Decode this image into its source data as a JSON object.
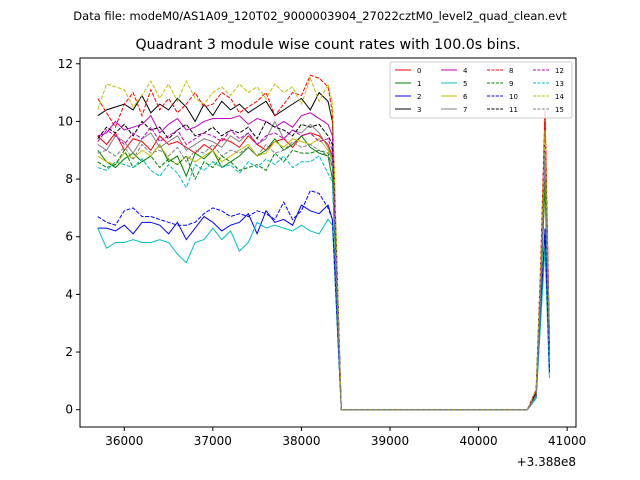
{
  "chart_data": {
    "type": "line",
    "suptitle": "Data file: modeM0/AS1A09_120T02_9000003904_27022cztM0_level2_quad_clean.evt",
    "title": "Quadrant 3 module wise count rates with 100.0s bins.",
    "xlabel": "",
    "ylabel": "",
    "x_offset_label": "+3.388e8",
    "xlim": [
      35500,
      41100
    ],
    "ylim": [
      -0.6,
      12.2
    ],
    "x_ticks": [
      36000,
      37000,
      38000,
      39000,
      40000,
      41000
    ],
    "x_tick_labels": [
      "36000",
      "37000",
      "38000",
      "39000",
      "40000",
      "41000"
    ],
    "y_ticks": [
      0,
      2,
      4,
      6,
      8,
      10,
      12
    ],
    "y_tick_labels": [
      "0",
      "2",
      "4",
      "6",
      "8",
      "10",
      "12"
    ],
    "grid": false,
    "legend_position": "upper-right",
    "x": [
      35700,
      35800,
      35900,
      36000,
      36100,
      36200,
      36300,
      36400,
      36500,
      36600,
      36700,
      36800,
      36900,
      37000,
      37100,
      37200,
      37300,
      37400,
      37500,
      37600,
      37700,
      37800,
      37900,
      38000,
      38100,
      38200,
      38300,
      38350,
      38450,
      38550,
      38650,
      38750,
      38850,
      38950,
      39050,
      39150,
      39250,
      39350,
      39450,
      39550,
      39650,
      39750,
      39850,
      39950,
      40050,
      40150,
      40250,
      40350,
      40450,
      40550,
      40650,
      40700,
      40750,
      40800
    ],
    "series": [
      {
        "name": "0",
        "color": "#ff0000",
        "dash": false,
        "values": [
          9.5,
          9.2,
          9.6,
          9.0,
          9.4,
          9.3,
          9.0,
          9.5,
          9.2,
          9.3,
          9.1,
          8.9,
          9.2,
          9.0,
          9.4,
          9.3,
          9.1,
          9.5,
          9.2,
          9.0,
          9.3,
          9.4,
          9.1,
          9.5,
          9.6,
          9.5,
          9.2,
          8.8,
          0.0,
          0.0,
          0.0,
          0.0,
          0.0,
          0.0,
          0.0,
          0.0,
          0.0,
          0.0,
          0.0,
          0.0,
          0.0,
          0.0,
          0.0,
          0.0,
          0.0,
          0.0,
          0.0,
          0.0,
          0.0,
          0.0,
          0.6,
          4.5,
          10.3,
          2.5
        ]
      },
      {
        "name": "1",
        "color": "#008000",
        "dash": false,
        "values": [
          9.0,
          8.6,
          8.4,
          8.7,
          8.9,
          8.6,
          8.8,
          9.2,
          8.6,
          8.8,
          8.1,
          8.9,
          8.7,
          9.0,
          8.4,
          8.6,
          8.8,
          9.1,
          8.8,
          9.0,
          9.4,
          9.0,
          9.2,
          9.5,
          9.1,
          8.9,
          8.8,
          8.0,
          0.0,
          0.0,
          0.0,
          0.0,
          0.0,
          0.0,
          0.0,
          0.0,
          0.0,
          0.0,
          0.0,
          0.0,
          0.0,
          0.0,
          0.0,
          0.0,
          0.0,
          0.0,
          0.0,
          0.0,
          0.0,
          0.0,
          0.5,
          4.0,
          7.8,
          2.0
        ]
      },
      {
        "name": "2",
        "color": "#0000ff",
        "dash": false,
        "values": [
          6.3,
          6.3,
          6.2,
          6.4,
          6.1,
          6.5,
          6.5,
          6.4,
          6.1,
          6.5,
          5.9,
          6.3,
          6.7,
          6.5,
          6.2,
          6.4,
          6.5,
          6.8,
          6.1,
          6.9,
          6.5,
          6.6,
          6.4,
          7.1,
          6.9,
          6.8,
          7.1,
          6.6,
          0.0,
          0.0,
          0.0,
          0.0,
          0.0,
          0.0,
          0.0,
          0.0,
          0.0,
          0.0,
          0.0,
          0.0,
          0.0,
          0.0,
          0.0,
          0.0,
          0.0,
          0.0,
          0.0,
          0.0,
          0.0,
          0.0,
          0.4,
          3.2,
          6.2,
          1.4
        ]
      },
      {
        "name": "3",
        "color": "#000000",
        "dash": false,
        "values": [
          10.2,
          10.4,
          10.5,
          10.6,
          10.4,
          10.9,
          10.3,
          10.6,
          10.4,
          10.8,
          10.5,
          10.0,
          10.6,
          10.2,
          10.7,
          10.4,
          10.6,
          10.3,
          10.5,
          10.7,
          10.2,
          10.4,
          10.6,
          10.8,
          10.4,
          11.0,
          10.7,
          10.0,
          0.0,
          0.0,
          0.0,
          0.0,
          0.0,
          0.0,
          0.0,
          0.0,
          0.0,
          0.0,
          0.0,
          0.0,
          0.0,
          0.0,
          0.0,
          0.0,
          0.0,
          0.0,
          0.0,
          0.0,
          0.0,
          0.0,
          0.6,
          4.6,
          9.2,
          2.4
        ]
      },
      {
        "name": "4",
        "color": "#bf00bf",
        "dash": false,
        "values": [
          9.5,
          9.6,
          10.0,
          9.7,
          9.8,
          9.9,
          10.2,
          9.6,
          9.9,
          10.1,
          9.7,
          9.8,
          10.0,
          10.1,
          10.1,
          10.1,
          10.2,
          9.9,
          10.1,
          10.0,
          9.8,
          10.0,
          9.8,
          10.2,
          10.3,
          10.1,
          9.9,
          9.5,
          0.0,
          0.0,
          0.0,
          0.0,
          0.0,
          0.0,
          0.0,
          0.0,
          0.0,
          0.0,
          0.0,
          0.0,
          0.0,
          0.0,
          0.0,
          0.0,
          0.0,
          0.0,
          0.0,
          0.0,
          0.0,
          0.0,
          0.5,
          4.4,
          9.0,
          2.2
        ]
      },
      {
        "name": "5",
        "color": "#00bfbf",
        "dash": false,
        "values": [
          6.3,
          5.6,
          5.8,
          5.8,
          5.9,
          5.8,
          5.8,
          5.9,
          5.8,
          5.4,
          5.1,
          5.8,
          5.9,
          6.3,
          5.9,
          6.2,
          5.5,
          5.8,
          6.5,
          6.3,
          6.4,
          6.3,
          6.2,
          6.4,
          6.2,
          6.1,
          6.6,
          6.4,
          0.0,
          0.0,
          0.0,
          0.0,
          0.0,
          0.0,
          0.0,
          0.0,
          0.0,
          0.0,
          0.0,
          0.0,
          0.0,
          0.0,
          0.0,
          0.0,
          0.0,
          0.0,
          0.0,
          0.0,
          0.0,
          0.0,
          0.4,
          3.0,
          5.6,
          1.1
        ]
      },
      {
        "name": "6",
        "color": "#bfbf00",
        "dash": false,
        "values": [
          8.8,
          8.6,
          8.5,
          8.9,
          8.7,
          9.0,
          8.8,
          9.2,
          8.7,
          8.5,
          8.8,
          8.6,
          8.8,
          9.0,
          8.6,
          8.8,
          9.0,
          9.2,
          8.8,
          8.9,
          9.3,
          9.1,
          9.4,
          9.3,
          9.2,
          9.4,
          9.0,
          8.6,
          0.0,
          0.0,
          0.0,
          0.0,
          0.0,
          0.0,
          0.0,
          0.0,
          0.0,
          0.0,
          0.0,
          0.0,
          0.0,
          0.0,
          0.0,
          0.0,
          0.0,
          0.0,
          0.0,
          0.0,
          0.0,
          0.0,
          0.5,
          4.3,
          9.5,
          2.3
        ]
      },
      {
        "name": "7",
        "color": "#808080",
        "dash": false,
        "values": [
          9.2,
          9.0,
          9.5,
          9.3,
          8.9,
          9.4,
          9.6,
          9.1,
          9.3,
          9.5,
          9.0,
          9.2,
          9.4,
          9.3,
          9.1,
          9.5,
          9.3,
          9.6,
          9.2,
          9.4,
          10.0,
          9.4,
          9.7,
          9.6,
          9.9,
          9.6,
          9.1,
          8.7,
          0.0,
          0.0,
          0.0,
          0.0,
          0.0,
          0.0,
          0.0,
          0.0,
          0.0,
          0.0,
          0.0,
          0.0,
          0.0,
          0.0,
          0.0,
          0.0,
          0.0,
          0.0,
          0.0,
          0.0,
          0.0,
          0.0,
          0.5,
          4.2,
          9.0,
          2.2
        ]
      },
      {
        "name": "8",
        "color": "#ff0000",
        "dash": true,
        "values": [
          10.8,
          10.3,
          9.8,
          10.6,
          11.0,
          10.2,
          11.1,
          10.4,
          10.8,
          10.3,
          10.6,
          11.0,
          10.5,
          10.6,
          11.0,
          10.8,
          10.3,
          10.5,
          10.7,
          11.0,
          10.2,
          10.6,
          11.0,
          10.9,
          11.6,
          11.5,
          11.2,
          10.3,
          0.0,
          0.0,
          0.0,
          0.0,
          0.0,
          0.0,
          0.0,
          0.0,
          0.0,
          0.0,
          0.0,
          0.0,
          0.0,
          0.0,
          0.0,
          0.0,
          0.0,
          0.0,
          0.0,
          0.0,
          0.0,
          0.0,
          0.7,
          5.0,
          10.4,
          2.6
        ]
      },
      {
        "name": "9",
        "color": "#008000",
        "dash": true,
        "values": [
          8.6,
          8.4,
          8.5,
          9.0,
          8.4,
          8.6,
          8.8,
          8.4,
          8.7,
          8.5,
          8.8,
          8.0,
          8.6,
          8.4,
          8.8,
          8.6,
          8.3,
          8.4,
          8.5,
          8.3,
          8.9,
          8.6,
          9.0,
          8.9,
          8.9,
          9.0,
          8.9,
          8.4,
          0.0,
          0.0,
          0.0,
          0.0,
          0.0,
          0.0,
          0.0,
          0.0,
          0.0,
          0.0,
          0.0,
          0.0,
          0.0,
          0.0,
          0.0,
          0.0,
          0.0,
          0.0,
          0.0,
          0.0,
          0.0,
          0.0,
          0.5,
          3.9,
          8.0,
          1.9
        ]
      },
      {
        "name": "10",
        "color": "#0000ff",
        "dash": true,
        "values": [
          6.7,
          6.5,
          6.4,
          6.9,
          7.0,
          6.7,
          6.7,
          6.6,
          6.5,
          6.4,
          6.4,
          6.5,
          6.8,
          7.0,
          6.9,
          6.7,
          6.8,
          6.7,
          6.9,
          6.8,
          6.6,
          7.2,
          6.6,
          6.9,
          7.6,
          7.5,
          7.0,
          6.6,
          0.0,
          0.0,
          0.0,
          0.0,
          0.0,
          0.0,
          0.0,
          0.0,
          0.0,
          0.0,
          0.0,
          0.0,
          0.0,
          0.0,
          0.0,
          0.0,
          0.0,
          0.0,
          0.0,
          0.0,
          0.0,
          0.0,
          0.5,
          3.5,
          6.3,
          1.3
        ]
      },
      {
        "name": "11",
        "color": "#000000",
        "dash": true,
        "values": [
          9.4,
          9.8,
          9.6,
          9.9,
          9.5,
          10.0,
          9.7,
          9.8,
          9.4,
          9.7,
          9.9,
          9.5,
          9.6,
          9.8,
          9.5,
          9.7,
          9.6,
          9.8,
          9.4,
          10.0,
          9.8,
          9.7,
          9.5,
          9.9,
          9.8,
          9.9,
          9.5,
          9.2,
          0.0,
          0.0,
          0.0,
          0.0,
          0.0,
          0.0,
          0.0,
          0.0,
          0.0,
          0.0,
          0.0,
          0.0,
          0.0,
          0.0,
          0.0,
          0.0,
          0.0,
          0.0,
          0.0,
          0.0,
          0.0,
          0.0,
          0.6,
          4.4,
          9.2,
          2.3
        ]
      },
      {
        "name": "12",
        "color": "#bf00bf",
        "dash": true,
        "values": [
          9.3,
          9.7,
          9.5,
          9.2,
          9.6,
          9.4,
          9.8,
          9.3,
          9.5,
          9.7,
          9.2,
          9.4,
          9.6,
          9.5,
          9.3,
          9.7,
          9.4,
          9.6,
          9.2,
          9.5,
          9.6,
          9.4,
          9.7,
          9.5,
          9.6,
          9.3,
          9.4,
          9.0,
          0.0,
          0.0,
          0.0,
          0.0,
          0.0,
          0.0,
          0.0,
          0.0,
          0.0,
          0.0,
          0.0,
          0.0,
          0.0,
          0.0,
          0.0,
          0.0,
          0.0,
          0.0,
          0.0,
          0.0,
          0.0,
          0.0,
          0.5,
          4.3,
          9.1,
          2.2
        ]
      },
      {
        "name": "13",
        "color": "#00bfbf",
        "dash": true,
        "values": [
          8.4,
          8.3,
          8.6,
          8.5,
          8.4,
          8.7,
          8.3,
          8.1,
          8.5,
          8.2,
          7.7,
          8.5,
          8.3,
          8.6,
          8.4,
          8.5,
          8.2,
          8.6,
          8.4,
          8.7,
          8.5,
          8.8,
          8.4,
          8.6,
          8.6,
          8.8,
          8.2,
          7.9,
          0.0,
          0.0,
          0.0,
          0.0,
          0.0,
          0.0,
          0.0,
          0.0,
          0.0,
          0.0,
          0.0,
          0.0,
          0.0,
          0.0,
          0.0,
          0.0,
          0.0,
          0.0,
          0.0,
          0.0,
          0.0,
          0.0,
          0.5,
          3.8,
          8.6,
          1.8
        ]
      },
      {
        "name": "14",
        "color": "#bfbf00",
        "dash": true,
        "values": [
          10.4,
          11.3,
          11.2,
          11.1,
          10.5,
          10.9,
          11.4,
          10.8,
          11.3,
          10.7,
          11.4,
          10.8,
          10.6,
          11.0,
          11.2,
          10.9,
          11.3,
          11.0,
          11.2,
          10.8,
          11.3,
          11.0,
          11.2,
          10.6,
          11.5,
          10.7,
          11.3,
          10.6,
          0.0,
          0.0,
          0.0,
          0.0,
          0.0,
          0.0,
          0.0,
          0.0,
          0.0,
          0.0,
          0.0,
          0.0,
          0.0,
          0.0,
          0.0,
          0.0,
          0.0,
          0.0,
          0.0,
          0.0,
          0.0,
          0.0,
          0.7,
          4.8,
          9.7,
          2.4
        ]
      },
      {
        "name": "15",
        "color": "#808080",
        "dash": true,
        "values": [
          8.9,
          9.0,
          8.8,
          9.1,
          8.7,
          9.2,
          8.9,
          9.0,
          8.8,
          9.1,
          8.6,
          9.0,
          8.9,
          9.2,
          8.8,
          9.0,
          8.9,
          9.1,
          8.8,
          9.2,
          8.9,
          9.0,
          9.3,
          9.1,
          9.2,
          9.0,
          8.8,
          8.5,
          0.0,
          0.0,
          0.0,
          0.0,
          0.0,
          0.0,
          0.0,
          0.0,
          0.0,
          0.0,
          0.0,
          0.0,
          0.0,
          0.0,
          0.0,
          0.0,
          0.0,
          0.0,
          0.0,
          0.0,
          0.0,
          0.0,
          0.5,
          4.1,
          8.9,
          2.1
        ]
      }
    ]
  }
}
